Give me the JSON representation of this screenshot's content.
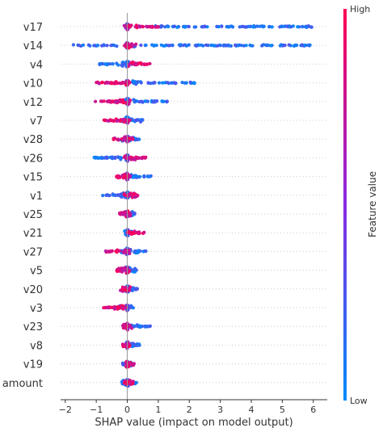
{
  "chart_data": {
    "type": "scatter",
    "subtype": "shap-beeswarm",
    "title": "",
    "xlabel": "SHAP value (impact on model output)",
    "ylabel": "",
    "xlim": [
      -2.15,
      6.45
    ],
    "xticks": [
      {
        "value": -2,
        "label": "−2"
      },
      {
        "value": -1,
        "label": "−1"
      },
      {
        "value": 0,
        "label": "0"
      },
      {
        "value": 1,
        "label": "1"
      },
      {
        "value": 2,
        "label": "2"
      },
      {
        "value": 3,
        "label": "3"
      },
      {
        "value": 4,
        "label": "4"
      },
      {
        "value": 5,
        "label": "5"
      },
      {
        "value": 6,
        "label": "6"
      }
    ],
    "grid": "horizontal dotted row guides",
    "colorbar": {
      "title": "Feature value",
      "high_label": "High",
      "low_label": "Low",
      "high_color": "#ff0052",
      "mid_color": "#8a2be2",
      "low_color": "#008bfb"
    },
    "features": [
      {
        "name": "v17",
        "min": -0.1,
        "max": 6.1,
        "low_spread": [
          0.9,
          6.1
        ],
        "high_spread": [
          -0.1,
          1.0
        ]
      },
      {
        "name": "v14",
        "min": -1.75,
        "max": 6.05,
        "low_spread": [
          -1.75,
          6.05
        ],
        "high_spread": [
          -0.1,
          0.3
        ]
      },
      {
        "name": "v4",
        "min": -0.9,
        "max": 0.75,
        "low_spread": [
          -0.9,
          0.2
        ],
        "high_spread": [
          0.05,
          0.75
        ]
      },
      {
        "name": "v10",
        "min": -1.0,
        "max": 2.2,
        "low_spread": [
          0.1,
          2.2
        ],
        "high_spread": [
          -1.0,
          0.1
        ]
      },
      {
        "name": "v12",
        "min": -1.05,
        "max": 1.35,
        "low_spread": [
          -0.1,
          1.35
        ],
        "high_spread": [
          -1.05,
          0.1
        ]
      },
      {
        "name": "v7",
        "min": -0.75,
        "max": 0.5,
        "low_spread": [
          -0.2,
          0.5
        ],
        "high_spread": [
          -0.75,
          0.1
        ]
      },
      {
        "name": "v28",
        "min": -0.45,
        "max": 0.4,
        "low_spread": [
          -0.2,
          0.4
        ],
        "high_spread": [
          -0.45,
          0.2
        ]
      },
      {
        "name": "v26",
        "min": -1.1,
        "max": 0.6,
        "low_spread": [
          -1.1,
          0.1
        ],
        "high_spread": [
          -0.1,
          0.6
        ]
      },
      {
        "name": "v15",
        "min": -0.35,
        "max": 0.8,
        "low_spread": [
          -0.1,
          0.8
        ],
        "high_spread": [
          -0.35,
          0.1
        ]
      },
      {
        "name": "v1",
        "min": -0.8,
        "max": 0.35,
        "low_spread": [
          -0.8,
          0.1
        ],
        "high_spread": [
          -0.1,
          0.35
        ]
      },
      {
        "name": "v25",
        "min": -0.25,
        "max": 0.25,
        "low_spread": [
          -0.1,
          0.25
        ],
        "high_spread": [
          -0.25,
          0.1
        ]
      },
      {
        "name": "v21",
        "min": -0.1,
        "max": 0.55,
        "low_spread": [
          -0.1,
          0.2
        ],
        "high_spread": [
          0.0,
          0.55
        ]
      },
      {
        "name": "v27",
        "min": -0.7,
        "max": 0.6,
        "low_spread": [
          -0.2,
          0.6
        ],
        "high_spread": [
          -0.7,
          0.1
        ]
      },
      {
        "name": "v5",
        "min": -0.35,
        "max": 0.3,
        "low_spread": [
          -0.1,
          0.3
        ],
        "high_spread": [
          -0.35,
          0.1
        ]
      },
      {
        "name": "v20",
        "min": -0.25,
        "max": 0.35,
        "low_spread": [
          -0.1,
          0.35
        ],
        "high_spread": [
          -0.25,
          0.1
        ]
      },
      {
        "name": "v3",
        "min": -0.8,
        "max": 0.2,
        "low_spread": [
          -0.5,
          0.2
        ],
        "high_spread": [
          -0.8,
          0.0
        ]
      },
      {
        "name": "v23",
        "min": -0.15,
        "max": 0.75,
        "low_spread": [
          -0.05,
          0.75
        ],
        "high_spread": [
          -0.15,
          0.15
        ]
      },
      {
        "name": "v8",
        "min": -0.15,
        "max": 0.4,
        "low_spread": [
          -0.05,
          0.4
        ],
        "high_spread": [
          -0.15,
          0.1
        ]
      },
      {
        "name": "v19",
        "min": -0.15,
        "max": 0.25,
        "low_spread": [
          -0.15,
          0.15
        ],
        "high_spread": [
          -0.05,
          0.25
        ]
      },
      {
        "name": "amount",
        "min": -0.2,
        "max": 0.3,
        "low_spread": [
          -0.2,
          0.3
        ],
        "high_spread": [
          -0.1,
          0.2
        ]
      }
    ]
  }
}
